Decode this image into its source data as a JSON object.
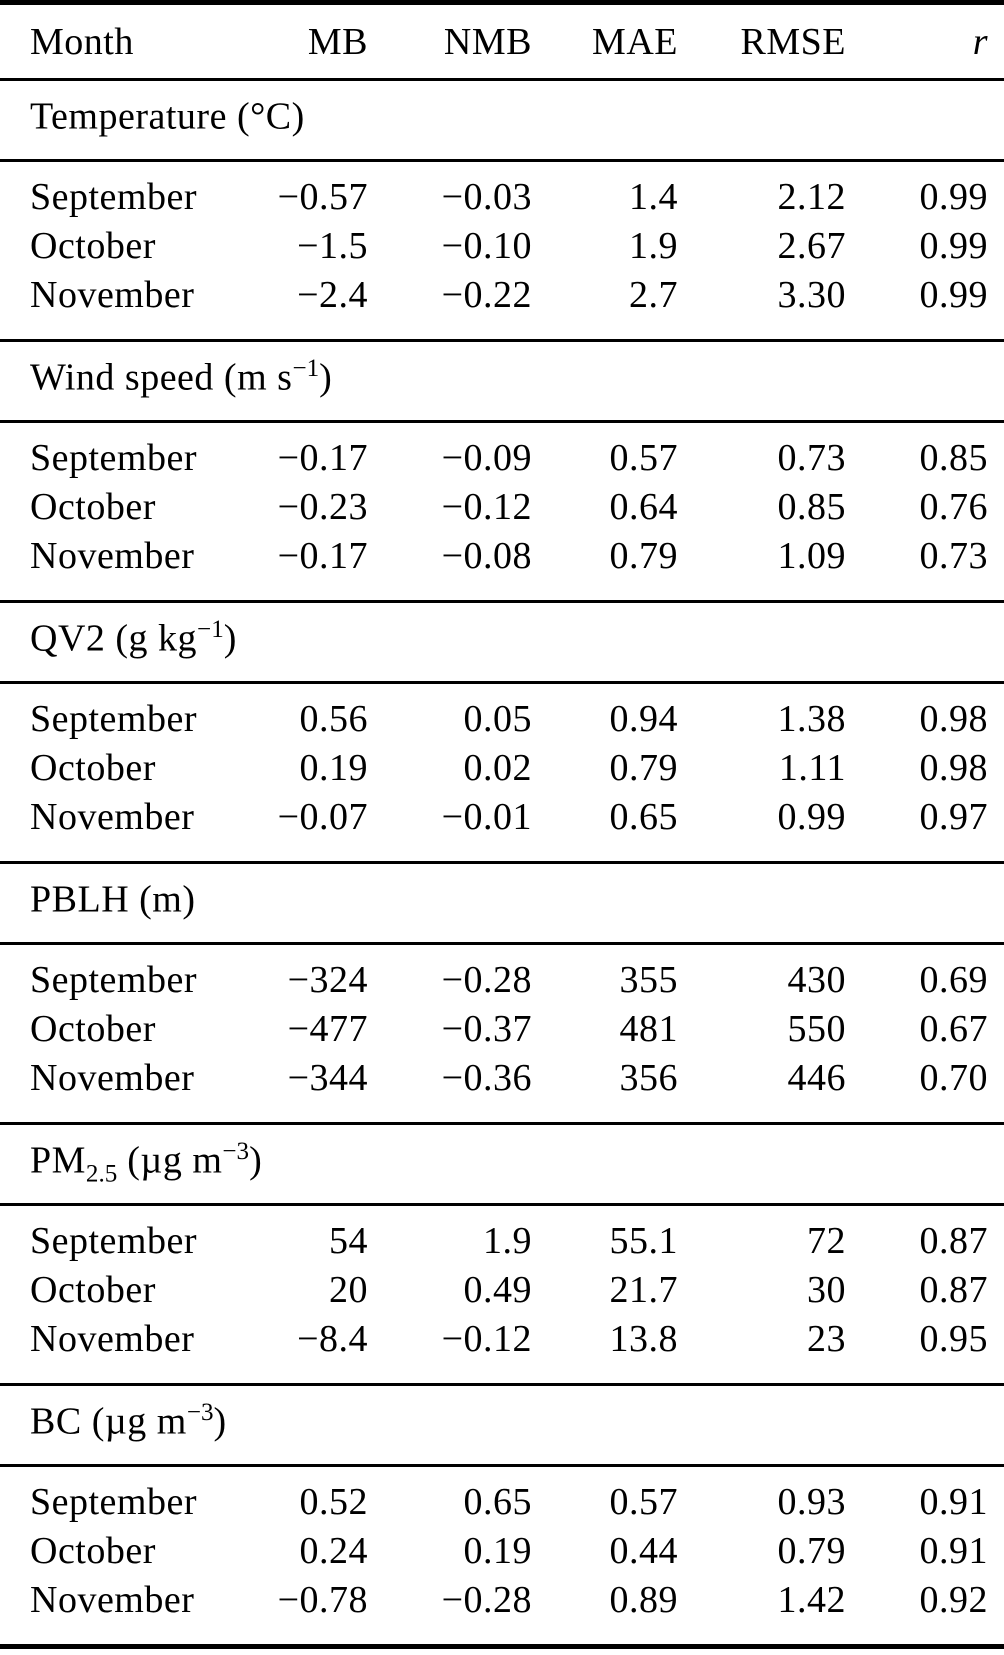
{
  "colors": {
    "text": "#000000",
    "background": "#ffffff",
    "rule": "#000000"
  },
  "table": {
    "header": {
      "month": "Month",
      "mb": "MB",
      "nmb": "NMB",
      "mae": "MAE",
      "rmse": "RMSE",
      "r": "r"
    },
    "sections": [
      {
        "id": "temperature",
        "title": {
          "pre": "Temperature (°C)",
          "sub": "",
          "mid": "",
          "sup": "",
          "post": ""
        },
        "rows": [
          {
            "month": "September",
            "mb": "−0.57",
            "nmb": "−0.03",
            "mae": "1.4",
            "rmse": "2.12",
            "r": "0.99"
          },
          {
            "month": "October",
            "mb": "−1.5",
            "nmb": "−0.10",
            "mae": "1.9",
            "rmse": "2.67",
            "r": "0.99"
          },
          {
            "month": "November",
            "mb": "−2.4",
            "nmb": "−0.22",
            "mae": "2.7",
            "rmse": "3.30",
            "r": "0.99"
          }
        ]
      },
      {
        "id": "wind-speed",
        "title": {
          "pre": "Wind speed (m s",
          "sub": "",
          "mid": "",
          "sup": "−1",
          "post": ")"
        },
        "rows": [
          {
            "month": "September",
            "mb": "−0.17",
            "nmb": "−0.09",
            "mae": "0.57",
            "rmse": "0.73",
            "r": "0.85"
          },
          {
            "month": "October",
            "mb": "−0.23",
            "nmb": "−0.12",
            "mae": "0.64",
            "rmse": "0.85",
            "r": "0.76"
          },
          {
            "month": "November",
            "mb": "−0.17",
            "nmb": "−0.08",
            "mae": "0.79",
            "rmse": "1.09",
            "r": "0.73"
          }
        ]
      },
      {
        "id": "qv2",
        "title": {
          "pre": "QV2 (g kg",
          "sub": "",
          "mid": "",
          "sup": "−1",
          "post": ")"
        },
        "rows": [
          {
            "month": "September",
            "mb": "0.56",
            "nmb": "0.05",
            "mae": "0.94",
            "rmse": "1.38",
            "r": "0.98"
          },
          {
            "month": "October",
            "mb": "0.19",
            "nmb": "0.02",
            "mae": "0.79",
            "rmse": "1.11",
            "r": "0.98"
          },
          {
            "month": "November",
            "mb": "−0.07",
            "nmb": "−0.01",
            "mae": "0.65",
            "rmse": "0.99",
            "r": "0.97"
          }
        ]
      },
      {
        "id": "pblh",
        "title": {
          "pre": "PBLH (m)",
          "sub": "",
          "mid": "",
          "sup": "",
          "post": ""
        },
        "rows": [
          {
            "month": "September",
            "mb": "−324",
            "nmb": "−0.28",
            "mae": "355",
            "rmse": "430",
            "r": "0.69"
          },
          {
            "month": "October",
            "mb": "−477",
            "nmb": "−0.37",
            "mae": "481",
            "rmse": "550",
            "r": "0.67"
          },
          {
            "month": "November",
            "mb": "−344",
            "nmb": "−0.36",
            "mae": "356",
            "rmse": "446",
            "r": "0.70"
          }
        ]
      },
      {
        "id": "pm2p5",
        "title": {
          "pre": "PM",
          "sub": "2.5",
          "mid": " (µg m",
          "sup": "−3",
          "post": ")"
        },
        "rows": [
          {
            "month": "September",
            "mb": "54",
            "nmb": "1.9",
            "mae": "55.1",
            "rmse": "72",
            "r": "0.87"
          },
          {
            "month": "October",
            "mb": "20",
            "nmb": "0.49",
            "mae": "21.7",
            "rmse": "30",
            "r": "0.87"
          },
          {
            "month": "November",
            "mb": "−8.4",
            "nmb": "−0.12",
            "mae": "13.8",
            "rmse": "23",
            "r": "0.95"
          }
        ]
      },
      {
        "id": "bc",
        "title": {
          "pre": "BC (µg m",
          "sub": "",
          "mid": "",
          "sup": "−3",
          "post": ")"
        },
        "rows": [
          {
            "month": "September",
            "mb": "0.52",
            "nmb": "0.65",
            "mae": "0.57",
            "rmse": "0.93",
            "r": "0.91"
          },
          {
            "month": "October",
            "mb": "0.24",
            "nmb": "0.19",
            "mae": "0.44",
            "rmse": "0.79",
            "r": "0.91"
          },
          {
            "month": "November",
            "mb": "−0.78",
            "nmb": "−0.28",
            "mae": "0.89",
            "rmse": "1.42",
            "r": "0.92"
          }
        ]
      }
    ]
  }
}
